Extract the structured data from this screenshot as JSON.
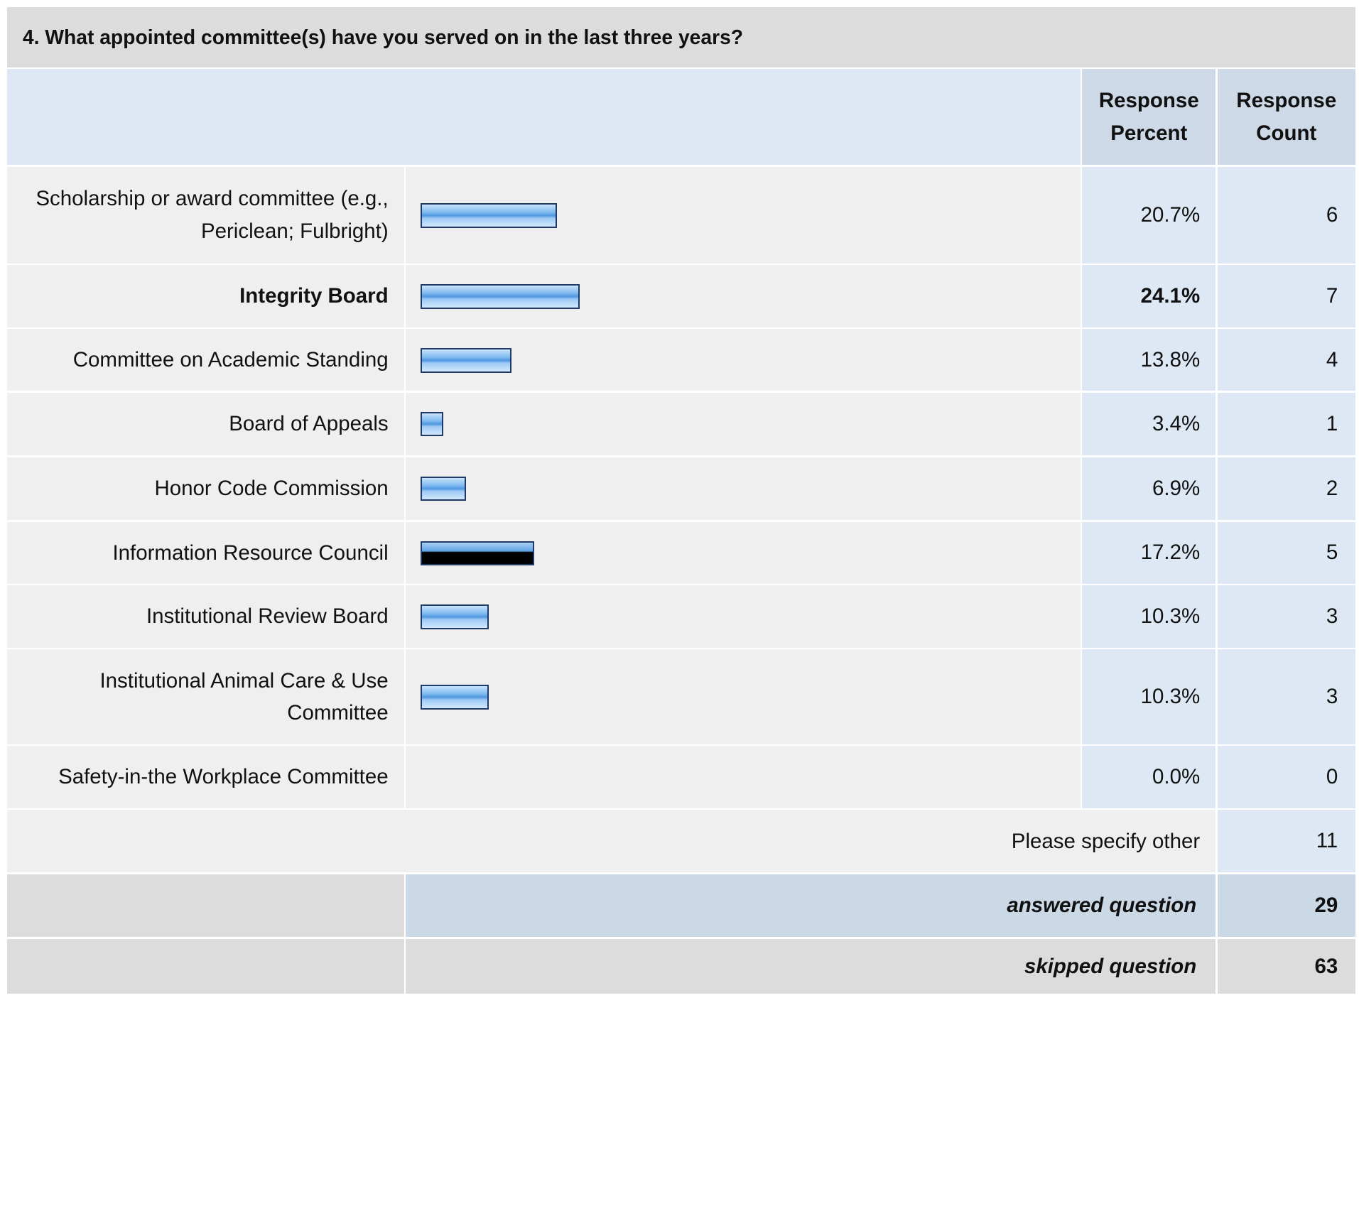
{
  "question": "4. What appointed committee(s) have you served on in the last three years?",
  "headers": {
    "percent": "Response Percent",
    "count": "Response Count"
  },
  "chart_data": {
    "type": "bar",
    "categories": [
      "Scholarship or award committee (e.g., Periclean; Fulbright)",
      "Integrity Board",
      "Committee on Academic Standing",
      "Board of Appeals",
      "Honor Code Commission",
      "Information Resource Council",
      "Institutional Review Board",
      "Institutional Animal Care & Use Committee",
      "Safety-in-the Workplace Committee"
    ],
    "values": [
      20.7,
      24.1,
      13.8,
      3.4,
      6.9,
      17.2,
      10.3,
      10.3,
      0.0
    ],
    "percent_labels": [
      "20.7%",
      "24.1%",
      "13.8%",
      "3.4%",
      "6.9%",
      "17.2%",
      "10.3%",
      "10.3%",
      "0.0%"
    ],
    "counts": [
      "6",
      "7",
      "4",
      "1",
      "2",
      "5",
      "3",
      "3",
      "0"
    ],
    "highlight_index": 1,
    "dark_bar_index": 5
  },
  "other": {
    "label": "Please specify other",
    "count": "11"
  },
  "answered": {
    "label": "answered question",
    "count": "29"
  },
  "skipped": {
    "label": "skipped question",
    "count": "63"
  },
  "colors": {
    "bar": "#5fa3e8",
    "bar_border": "#1f3a64",
    "header_bg": "#dde8f4",
    "row_bg": "#efefef",
    "title_bg": "#dcdcdc"
  }
}
